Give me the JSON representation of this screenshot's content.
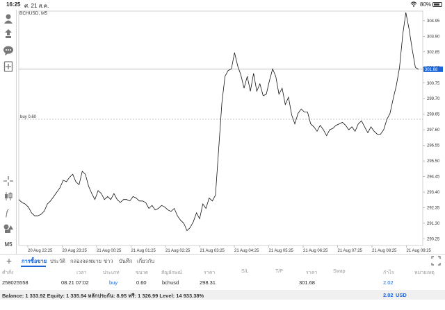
{
  "status_bar": {
    "time": "16:25",
    "date": "ศ. 21 ส.ค.",
    "battery": "80%",
    "battery_level": 0.8
  },
  "chart": {
    "symbol": "BCHUSD, M5",
    "price_ticks": [
      "304.95",
      "303.90",
      "302.85",
      "301.80",
      "300.75",
      "299.70",
      "298.65",
      "297.60",
      "296.55",
      "295.50",
      "294.45",
      "293.40",
      "292.35",
      "291.30",
      "290.25"
    ],
    "time_ticks": [
      "20 Aug 22:25",
      "20 Aug 23:25",
      "21 Aug 00:25",
      "21 Aug 01:25",
      "21 Aug 02:25",
      "21 Aug 03:25",
      "21 Aug 04:25",
      "21 Aug 05:25",
      "21 Aug 06:25",
      "21 Aug 07:25",
      "21 Aug 08:25",
      "21 Aug 09:25"
    ],
    "current_price": "301.68",
    "buy_line_label": "buy 0.60",
    "period_label": "M5"
  },
  "chart_data": {
    "type": "line",
    "title": "BCHUSD, M5",
    "ylim": [
      289.8,
      305.6
    ],
    "grid": false,
    "series": [
      {
        "name": "BCHUSD",
        "values": [
          292.9,
          292.7,
          292.6,
          292.4,
          292.0,
          291.8,
          291.8,
          291.9,
          292.1,
          292.6,
          292.8,
          293.1,
          293.4,
          293.7,
          294.2,
          294.1,
          294.4,
          294.6,
          294.1,
          293.9,
          294.8,
          294.6,
          293.8,
          293.3,
          292.9,
          293.5,
          293.3,
          292.9,
          293.1,
          292.9,
          293.3,
          292.9,
          292.7,
          292.9,
          292.9,
          292.8,
          293.1,
          293.0,
          292.8,
          292.8,
          292.7,
          292.3,
          292.5,
          292.2,
          292.3,
          292.5,
          292.4,
          292.2,
          292.1,
          292.3,
          291.8,
          291.5,
          291.3,
          290.8,
          291.0,
          291.4,
          292.0,
          291.6,
          292.6,
          292.3,
          293.0,
          292.8,
          293.2,
          296.3,
          299.4,
          301.2,
          301.6,
          301.7,
          302.8,
          301.9,
          301.3,
          300.4,
          301.2,
          300.2,
          301.4,
          300.2,
          300.7,
          299.9,
          300.0,
          300.9,
          301.7,
          301.2,
          300.0,
          300.4,
          299.3,
          299.8,
          298.6,
          298.0,
          298.7,
          299.0,
          298.8,
          298.8,
          298.0,
          297.8,
          297.5,
          297.9,
          297.6,
          297.2,
          297.6,
          297.7,
          297.9,
          298.0,
          298.1,
          297.9,
          297.6,
          297.8,
          297.5,
          298.0,
          298.2,
          297.8,
          297.4,
          297.8,
          297.5,
          297.3,
          297.3,
          297.6,
          298.3,
          298.7,
          299.7,
          300.6,
          301.8,
          304.0,
          305.5,
          304.4,
          303.0,
          301.8,
          301.68
        ]
      }
    ]
  },
  "tabs": [
    "การซื้อขาย",
    "ประวัติ",
    "กล่องจดหมาย",
    "ข่าว",
    "บันทึก",
    "เกี่ยวกับ"
  ],
  "table": {
    "headers": [
      "คำสั่ง",
      "เวลา",
      "ประเภท",
      "ขนาด",
      "สัญลักษณ์",
      "ราคา",
      "S/L",
      "T/P",
      "ราคา",
      "Swap",
      "กำไร",
      "หมายเหตุ"
    ],
    "row": {
      "order": "258025558",
      "time": "08.21 07:02",
      "type": "buy",
      "volume": "0.60",
      "symbol": "bchusd",
      "open_price": "298.31",
      "sl": "",
      "tp": "",
      "price": "301.68",
      "swap": "",
      "profit": "2.02",
      "comment": ""
    }
  },
  "balance": {
    "text": "Balance: 1 333.92 Equity: 1 335.94 หลักประกัน: 8.95 ฟรี: 1 326.99 Level: 14 933.38%",
    "profit": "2.02",
    "currency": "USD"
  },
  "colors": {
    "accent": "#1b64d8",
    "line": "#111111"
  }
}
